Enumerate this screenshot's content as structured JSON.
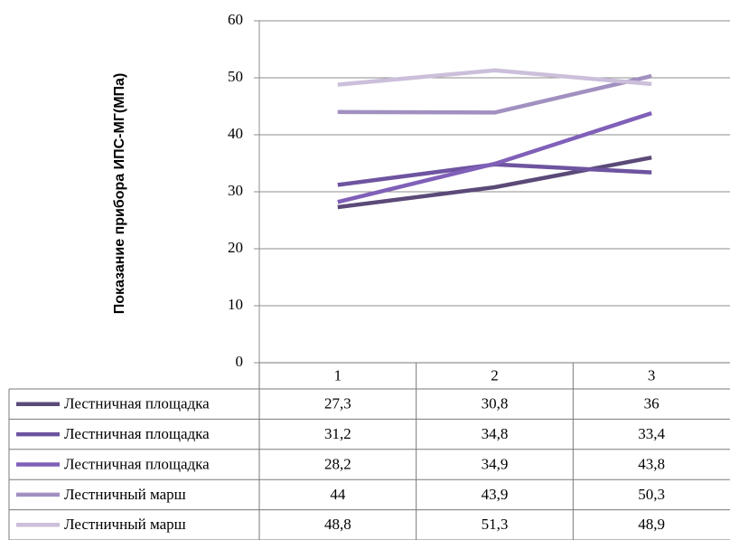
{
  "chart_data": {
    "type": "line",
    "ylabel": "Показание прибора ИПС-МГ(МПа)",
    "ylim": [
      0,
      60
    ],
    "yticks": [
      "0",
      "10",
      "20",
      "30",
      "40",
      "50",
      "60"
    ],
    "categories": [
      "1",
      "2",
      "3"
    ],
    "grid": true,
    "legend": "data-table-below",
    "series": [
      {
        "name": "Лестничная площадка",
        "values": [
          27.3,
          30.8,
          36
        ],
        "labels": [
          "27,3",
          "30,8",
          "36"
        ],
        "color": "#5b4a78"
      },
      {
        "name": "Лестничная площадка",
        "values": [
          31.2,
          34.8,
          33.4
        ],
        "labels": [
          "31,2",
          "34,8",
          "33,4"
        ],
        "color": "#6e54a0"
      },
      {
        "name": "Лестничная площадка",
        "values": [
          28.2,
          34.9,
          43.8
        ],
        "labels": [
          "28,2",
          "34,9",
          "43,8"
        ],
        "color": "#8060b8"
      },
      {
        "name": "Лестничный марш",
        "values": [
          44,
          43.9,
          50.3
        ],
        "labels": [
          "44",
          "43,9",
          "50,3"
        ],
        "color": "#a190c0"
      },
      {
        "name": "Лестничный марш",
        "values": [
          48.8,
          51.3,
          48.9
        ],
        "labels": [
          "48,8",
          "51,3",
          "48,9"
        ],
        "color": "#cbbfdb"
      }
    ]
  }
}
